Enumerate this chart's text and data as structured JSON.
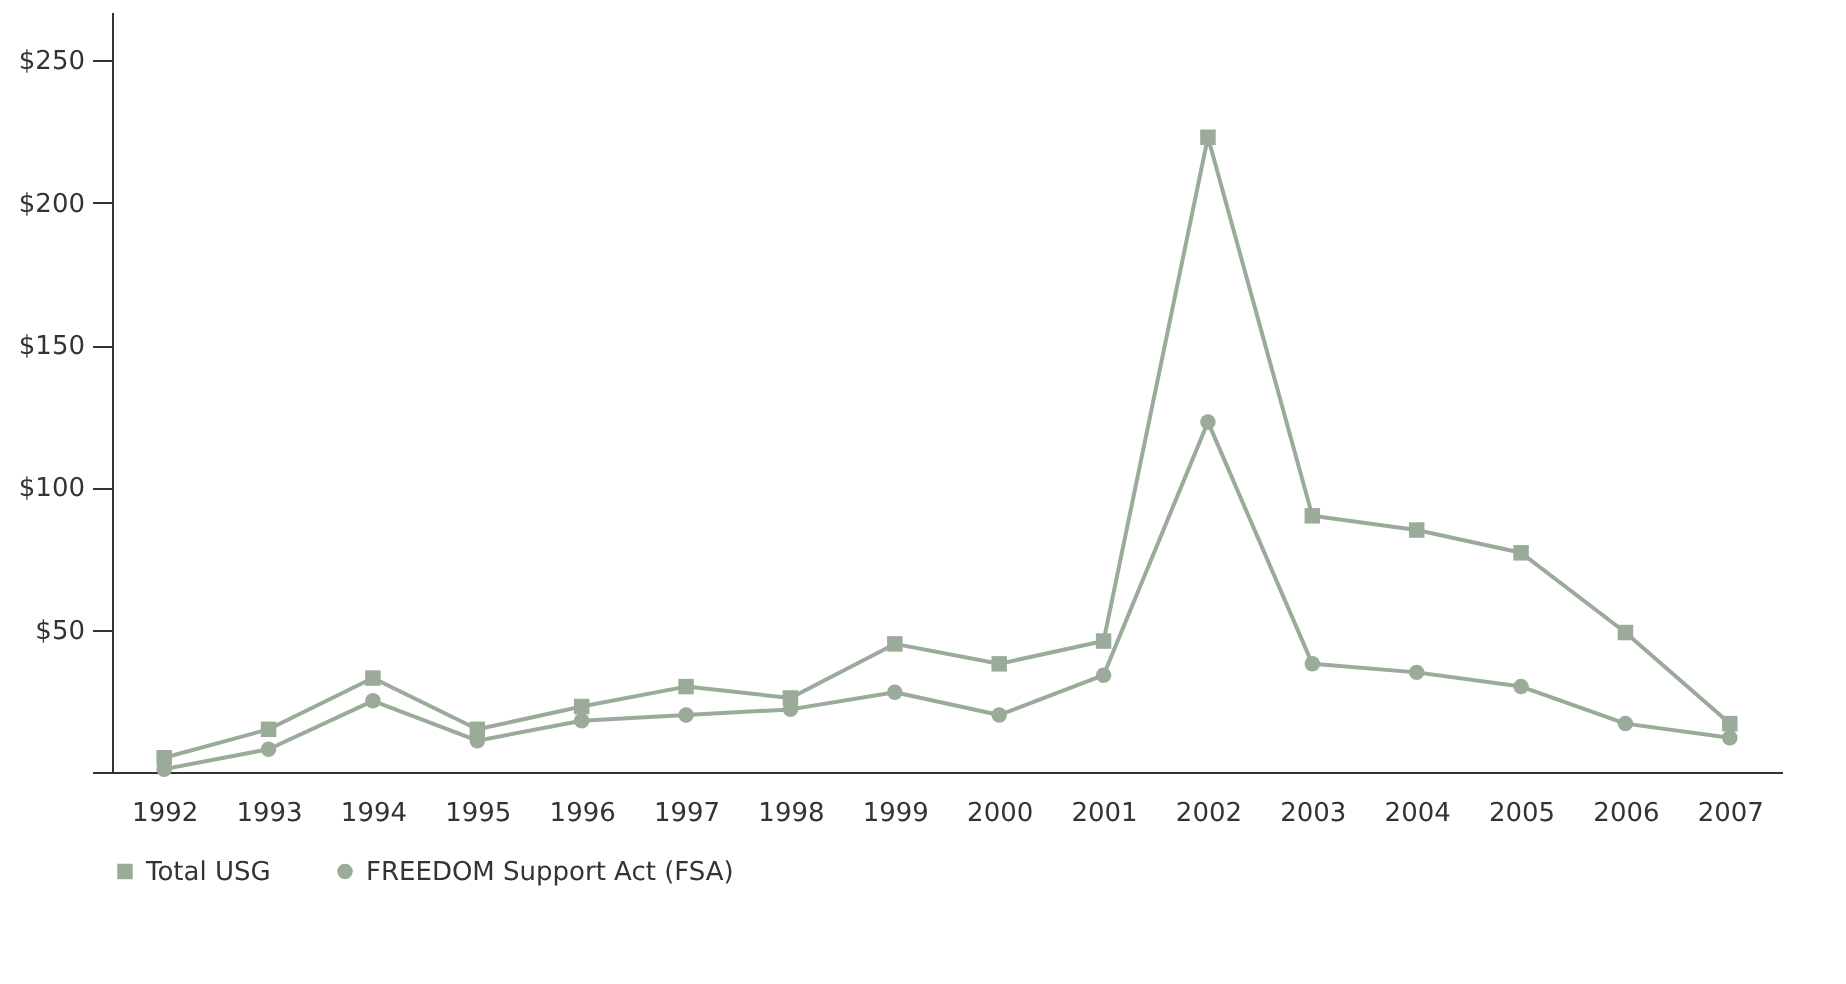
{
  "chart_data": {
    "type": "line",
    "categories": [
      "1992",
      "1993",
      "1994",
      "1995",
      "1996",
      "1997",
      "1998",
      "1999",
      "2000",
      "2001",
      "2002",
      "2003",
      "2004",
      "2005",
      "2006",
      "2007"
    ],
    "series": [
      {
        "name": "Total USG",
        "color": "#9aab9a",
        "marker": "square",
        "values": [
          5,
          15,
          33,
          15,
          23,
          30,
          26,
          45,
          38,
          46,
          223,
          90,
          85,
          77,
          49,
          17
        ]
      },
      {
        "name": "FREEDOM Support Act (FSA)",
        "color": "#9aab9a",
        "marker": "circle",
        "values": [
          1,
          8,
          25,
          11,
          18,
          20,
          22,
          28,
          20,
          34,
          123,
          38,
          35,
          30,
          17,
          12
        ]
      }
    ],
    "ylim": [
      0,
      267
    ],
    "yticks": [
      {
        "value": 0,
        "label": null
      },
      {
        "value": 50,
        "label": "$50"
      },
      {
        "value": 100,
        "label": "$100"
      },
      {
        "value": 150,
        "label": "$150"
      },
      {
        "value": 200,
        "label": "$200"
      },
      {
        "value": 250,
        "label": "$250"
      }
    ],
    "grid": false,
    "legend": "bottom left",
    "line_style": "solid"
  }
}
